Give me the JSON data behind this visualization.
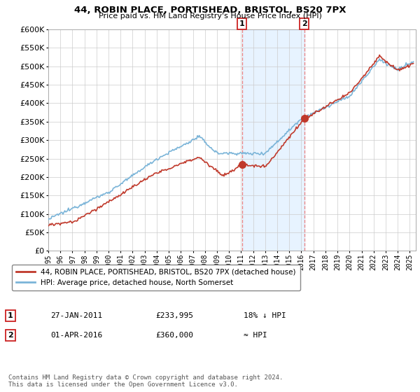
{
  "title": "44, ROBIN PLACE, PORTISHEAD, BRISTOL, BS20 7PX",
  "subtitle": "Price paid vs. HM Land Registry's House Price Index (HPI)",
  "legend_line1": "44, ROBIN PLACE, PORTISHEAD, BRISTOL, BS20 7PX (detached house)",
  "legend_line2": "HPI: Average price, detached house, North Somerset",
  "annotation1_label": "1",
  "annotation1_date": "27-JAN-2011",
  "annotation1_price": "£233,995",
  "annotation1_hpi": "18% ↓ HPI",
  "annotation2_label": "2",
  "annotation2_date": "01-APR-2016",
  "annotation2_price": "£360,000",
  "annotation2_hpi": "≈ HPI",
  "footer": "Contains HM Land Registry data © Crown copyright and database right 2024.\nThis data is licensed under the Open Government Licence v3.0.",
  "hpi_color": "#7ab4d8",
  "price_color": "#c0392b",
  "marker_color": "#c0392b",
  "shade_color": "#ddeeff",
  "vline_color": "#e88080",
  "background_plot": "#ffffff",
  "background_fig": "#ffffff",
  "ylim": [
    0,
    600000
  ],
  "yticks": [
    0,
    50000,
    100000,
    150000,
    200000,
    250000,
    300000,
    350000,
    400000,
    450000,
    500000,
    550000,
    600000
  ],
  "year_start": 1995,
  "year_end": 2025,
  "transaction1_year": 2011.07,
  "transaction1_value": 233995,
  "transaction2_year": 2016.25,
  "transaction2_value": 360000
}
